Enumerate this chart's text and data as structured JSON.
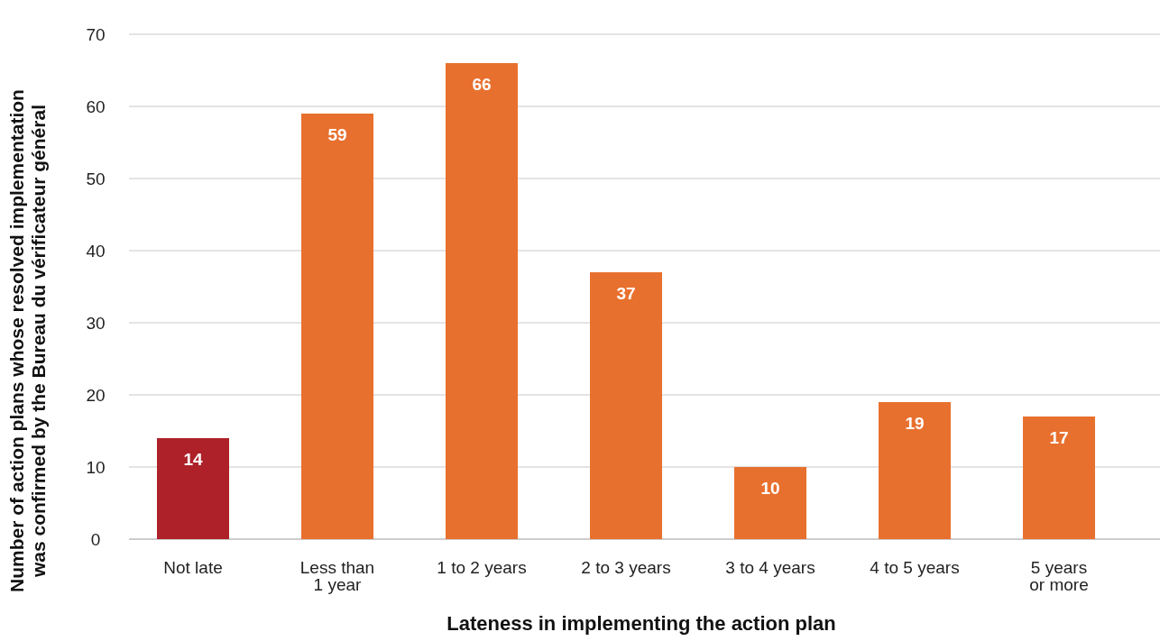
{
  "chart_data": {
    "type": "bar",
    "xlabel": "Lateness in implementing the action plan",
    "ylabel": "Number of action plans whose resolved implementation\nwas confirmed by the Bureau du vérificateur général",
    "categories": [
      "Not late",
      "Less than\n1 year",
      "1 to 2 years",
      "2 to 3 years",
      "3 to 4 years",
      "4 to 5 years",
      "5 years\nor more"
    ],
    "values": [
      14,
      59,
      66,
      37,
      10,
      19,
      17
    ],
    "colors": [
      "#ae2128",
      "#e8702e",
      "#e8702e",
      "#e8702e",
      "#e8702e",
      "#e8702e",
      "#e8702e"
    ],
    "ylim": [
      0,
      70
    ],
    "yticks": [
      0,
      10,
      20,
      30,
      40,
      50,
      60,
      70
    ],
    "grid": "y",
    "data_labels": true
  }
}
